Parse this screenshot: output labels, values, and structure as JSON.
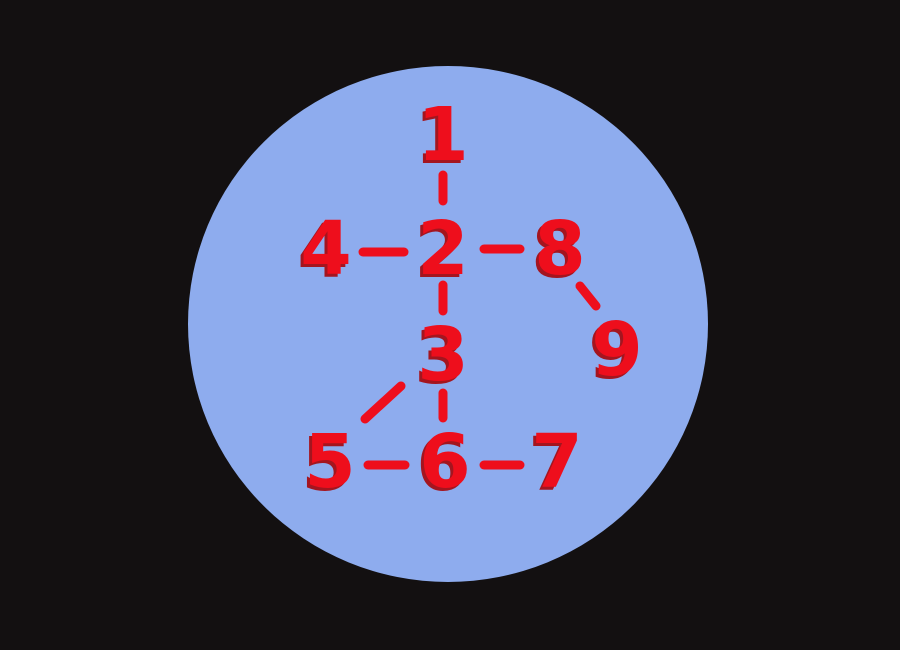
{
  "colors": {
    "background": "#131011",
    "disc": "#8eacee",
    "label": "#ee0e1c",
    "label_shadow": "#a4151f",
    "edge": "#ee0e1c"
  },
  "nodes": [
    {
      "id": "1",
      "label": "1"
    },
    {
      "id": "2",
      "label": "2"
    },
    {
      "id": "3",
      "label": "3"
    },
    {
      "id": "4",
      "label": "4"
    },
    {
      "id": "5",
      "label": "5"
    },
    {
      "id": "6",
      "label": "6"
    },
    {
      "id": "7",
      "label": "7"
    },
    {
      "id": "8",
      "label": "8"
    },
    {
      "id": "9",
      "label": "9"
    }
  ],
  "edges": [
    {
      "from": "1",
      "to": "2"
    },
    {
      "from": "4",
      "to": "2"
    },
    {
      "from": "2",
      "to": "8"
    },
    {
      "from": "2",
      "to": "3"
    },
    {
      "from": "8",
      "to": "9"
    },
    {
      "from": "3",
      "to": "5"
    },
    {
      "from": "3",
      "to": "6"
    },
    {
      "from": "5",
      "to": "6"
    },
    {
      "from": "6",
      "to": "7"
    }
  ]
}
